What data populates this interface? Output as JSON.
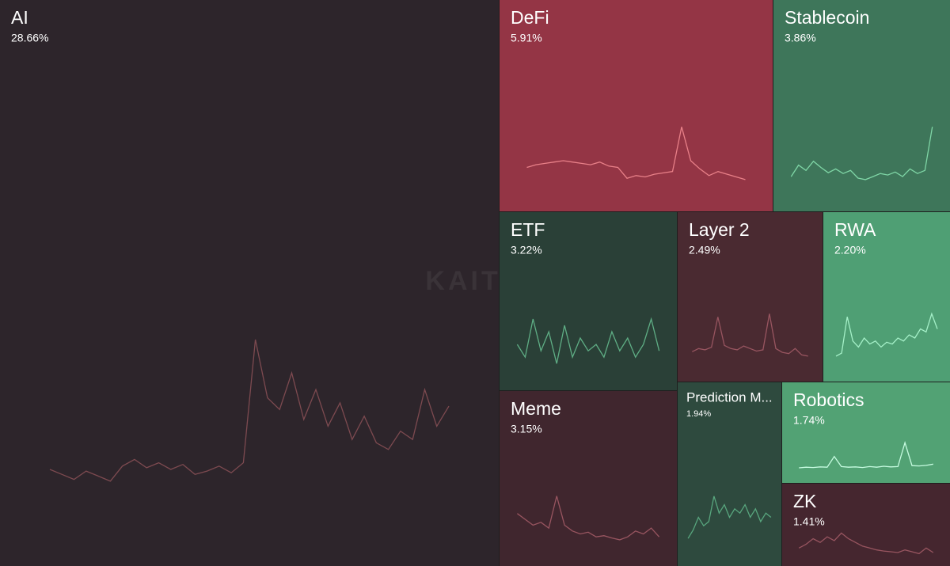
{
  "chart_data": {
    "type": "treemap",
    "watermark": "KAITO",
    "series": [
      {
        "name": "AI",
        "value": 28.66,
        "value_label": "28.66%",
        "color": "#2d252b",
        "line_color": "#7d4a50",
        "trend": [
          12,
          9,
          6,
          11,
          8,
          5,
          14,
          18,
          13,
          16,
          12,
          15,
          9,
          11,
          14,
          10,
          16,
          90,
          55,
          48,
          70,
          42,
          60,
          38,
          52,
          30,
          44,
          28,
          24,
          35,
          30,
          60,
          38,
          50
        ]
      },
      {
        "name": "DeFi",
        "value": 5.91,
        "value_label": "5.91%",
        "color": "#943545",
        "line_color": "#e88088",
        "trend": [
          30,
          34,
          36,
          38,
          40,
          38,
          36,
          34,
          38,
          32,
          30,
          14,
          18,
          16,
          20,
          22,
          24,
          90,
          40,
          28,
          18,
          24,
          20,
          16,
          12
        ]
      },
      {
        "name": "Stablecoin",
        "value": 3.86,
        "value_label": "3.86%",
        "color": "#3e765a",
        "line_color": "#7fd6a6",
        "trend": [
          30,
          45,
          38,
          50,
          42,
          35,
          40,
          34,
          38,
          28,
          26,
          30,
          34,
          32,
          36,
          30,
          40,
          34,
          38,
          95
        ]
      },
      {
        "name": "ETF",
        "value": 3.22,
        "value_label": "3.22%",
        "color": "#2a4037",
        "line_color": "#5fae85",
        "trend": [
          40,
          30,
          60,
          35,
          50,
          25,
          55,
          30,
          45,
          35,
          40,
          30,
          50,
          35,
          45,
          30,
          40,
          60,
          35
        ]
      },
      {
        "name": "Layer 2",
        "value": 2.49,
        "value_label": "2.49%",
        "color": "#4a2a31",
        "line_color": "#985560",
        "trend": [
          25,
          30,
          28,
          32,
          80,
          35,
          30,
          28,
          34,
          30,
          26,
          28,
          85,
          30,
          24,
          22,
          30,
          20,
          18
        ]
      },
      {
        "name": "RWA",
        "value": 2.2,
        "value_label": "2.20%",
        "color": "#4f9f74",
        "line_color": "#a5f0c8",
        "trend": [
          15,
          20,
          80,
          40,
          30,
          45,
          35,
          40,
          30,
          38,
          35,
          45,
          40,
          50,
          45,
          60,
          55,
          85,
          60
        ]
      },
      {
        "name": "Meme",
        "value": 3.15,
        "value_label": "3.15%",
        "color": "#40262e",
        "line_color": "#985560",
        "trend": [
          60,
          50,
          40,
          45,
          35,
          90,
          40,
          30,
          25,
          28,
          20,
          22,
          18,
          15,
          20,
          30,
          25,
          35,
          20
        ]
      },
      {
        "name": "Prediction M...",
        "value": 1.94,
        "value_label": "1.94%",
        "color": "#2e4a3e",
        "line_color": "#58a67e",
        "trend": [
          10,
          20,
          35,
          25,
          30,
          60,
          40,
          50,
          35,
          45,
          40,
          50,
          35,
          45,
          30,
          40,
          35
        ]
      },
      {
        "name": "Robotics",
        "value": 1.74,
        "value_label": "1.74%",
        "color": "#52a274",
        "line_color": "#c6fbe0",
        "trend": [
          8,
          10,
          9,
          11,
          10,
          45,
          12,
          10,
          11,
          9,
          12,
          10,
          13,
          11,
          12,
          90,
          15,
          14,
          16,
          20
        ]
      },
      {
        "name": "ZK",
        "value": 1.41,
        "value_label": "1.41%",
        "color": "#45262f",
        "line_color": "#985560",
        "trend": [
          30,
          40,
          55,
          45,
          60,
          50,
          70,
          55,
          45,
          35,
          30,
          25,
          22,
          20,
          18,
          25,
          20,
          15,
          30,
          18
        ]
      }
    ]
  }
}
